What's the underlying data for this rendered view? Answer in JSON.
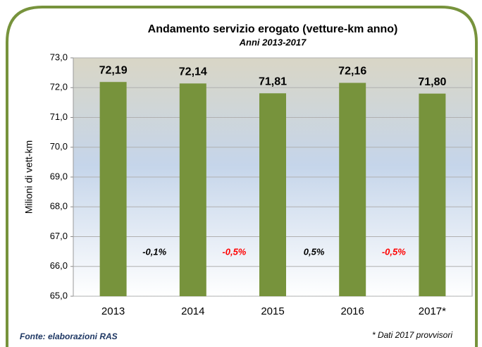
{
  "chart_data": {
    "type": "bar",
    "title": "Andamento servizio erogato (vetture-km anno)",
    "subtitle": "Anni 2013-2017",
    "y_label": "Milioni di vett-km",
    "categories": [
      "2013",
      "2014",
      "2015",
      "2016",
      "2017*"
    ],
    "values": [
      72.19,
      72.14,
      71.81,
      72.16,
      71.8
    ],
    "value_labels": [
      "72,19",
      "72,14",
      "71,81",
      "72,16",
      "71,80"
    ],
    "color": "#77933c",
    "ylim": [
      65,
      73
    ],
    "yticks": [
      {
        "value": 65,
        "label": "65,0"
      },
      {
        "value": 66,
        "label": "66,0"
      },
      {
        "value": 67,
        "label": "67,0"
      },
      {
        "value": 68,
        "label": "68,0"
      },
      {
        "value": 69,
        "label": "69,0"
      },
      {
        "value": 70,
        "label": "70,0"
      },
      {
        "value": 71,
        "label": "71,0"
      },
      {
        "value": 72,
        "label": "72,0"
      },
      {
        "value": 73,
        "label": "73,0"
      }
    ],
    "grid": true,
    "annotations": [
      {
        "text": "-0,1%",
        "color": "#000000"
      },
      {
        "text": "-0,5%",
        "color": "#ff0000"
      },
      {
        "text": "0,5%",
        "color": "#000000"
      },
      {
        "text": "-0,5%",
        "color": "#ff0000"
      }
    ],
    "source": "Fonte: elaborazioni RAS",
    "note": "* Dati 2017 provvisori"
  }
}
